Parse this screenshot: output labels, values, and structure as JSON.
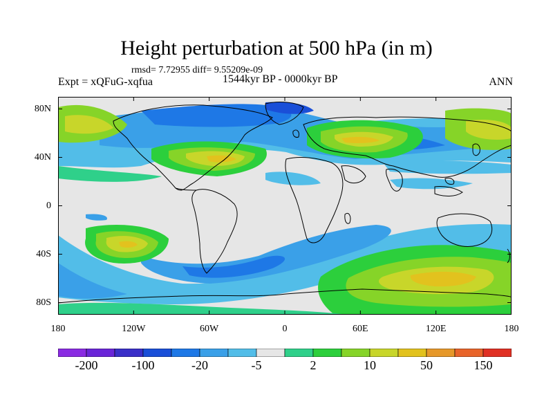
{
  "header": {
    "title": "Height perturbation at 500 hPa (in m)",
    "stats": "rmsd= 7.72955 diff= 9.55209e-09",
    "experiment": "Expt = xQFuG-xqfua",
    "period": "1544kyr BP - 0000kyr BP",
    "season": "ANN"
  },
  "map": {
    "lat_ticks": [
      "80N",
      "40N",
      "0",
      "40S",
      "80S"
    ],
    "lon_ticks": [
      "180",
      "120W",
      "60W",
      "0",
      "60E",
      "120E",
      "180"
    ],
    "lat_values": [
      80,
      40,
      0,
      -40,
      -80
    ],
    "lon_values": [
      -180,
      -120,
      -60,
      0,
      60,
      120,
      180
    ]
  },
  "colorbar": {
    "colors": [
      "#8a2be2",
      "#6a25d8",
      "#3a2fc8",
      "#1a4fd8",
      "#1e78e6",
      "#3aa0e8",
      "#52bde8",
      "#e6e6e6",
      "#2fd08a",
      "#2ccf3c",
      "#86d428",
      "#c8d62a",
      "#e2c21e",
      "#e6982a",
      "#e8642a",
      "#e03024"
    ],
    "labels": [
      "-200",
      "-100",
      "-20",
      "-5",
      "2",
      "10",
      "50",
      "150"
    ]
  }
}
